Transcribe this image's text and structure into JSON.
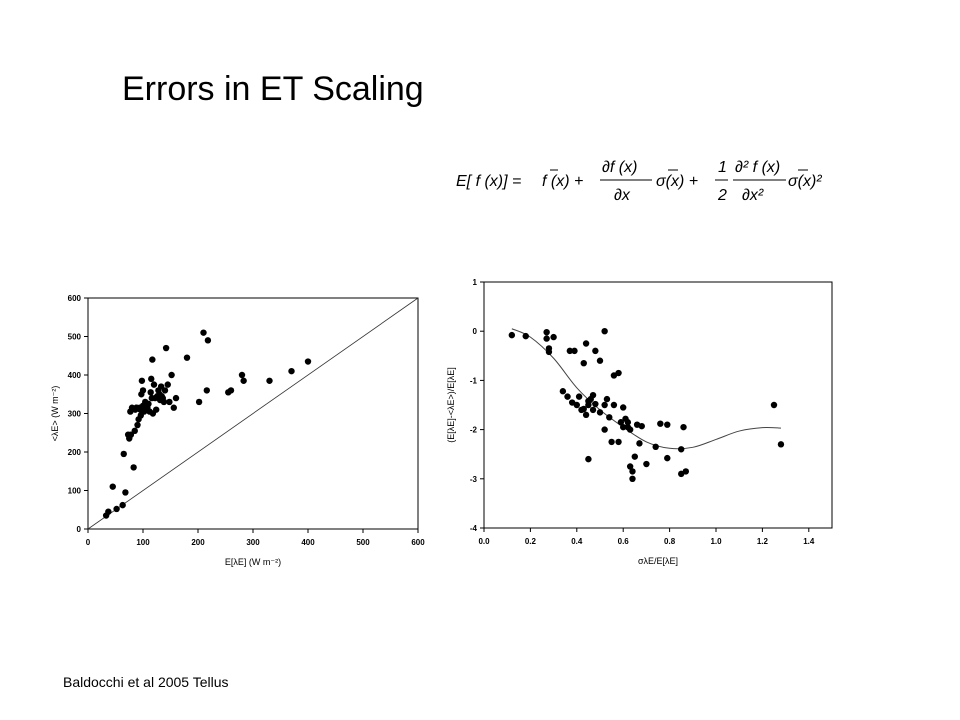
{
  "slide": {
    "title": "Errors in ET Scaling",
    "footer": "Baldocchi et al 2005 Tellus",
    "equation": {
      "lhs": "E[ f (x)] =",
      "term1": "f (x) +",
      "num1": "∂f (x)",
      "den1": "∂x",
      "sigma1": "σ(x) +",
      "frac_num": "1",
      "frac_den": "2",
      "num2": "∂² f (x)",
      "den2": "∂x²",
      "sigma2": "σ(x)²"
    }
  },
  "chart_data": [
    {
      "type": "scatter",
      "title": "",
      "xlabel": "E[λE] (W m⁻²)",
      "ylabel": "<λE> (W m⁻²)",
      "xlim": [
        0,
        600
      ],
      "ylim": [
        0,
        600
      ],
      "xticks": [
        "0",
        "100",
        "200",
        "300",
        "400",
        "500",
        "600"
      ],
      "yticks": [
        "0",
        "100",
        "200",
        "300",
        "400",
        "500",
        "600"
      ],
      "grid": false,
      "reference_line": "1:1",
      "points": [
        [
          33,
          35
        ],
        [
          37,
          45
        ],
        [
          45,
          110
        ],
        [
          52,
          52
        ],
        [
          63,
          62
        ],
        [
          68,
          95
        ],
        [
          65,
          195
        ],
        [
          73,
          245
        ],
        [
          75,
          235
        ],
        [
          77,
          305
        ],
        [
          78,
          245
        ],
        [
          80,
          315
        ],
        [
          83,
          160
        ],
        [
          85,
          255
        ],
        [
          88,
          315
        ],
        [
          90,
          270
        ],
        [
          92,
          285
        ],
        [
          95,
          310
        ],
        [
          96,
          295
        ],
        [
          97,
          350
        ],
        [
          98,
          385
        ],
        [
          100,
          360
        ],
        [
          100,
          320
        ],
        [
          102,
          305
        ],
        [
          104,
          330
        ],
        [
          106,
          310
        ],
        [
          108,
          315
        ],
        [
          110,
          325
        ],
        [
          112,
          305
        ],
        [
          114,
          355
        ],
        [
          115,
          390
        ],
        [
          116,
          340
        ],
        [
          117,
          440
        ],
        [
          118,
          300
        ],
        [
          120,
          375
        ],
        [
          122,
          340
        ],
        [
          124,
          310
        ],
        [
          126,
          345
        ],
        [
          128,
          360
        ],
        [
          130,
          350
        ],
        [
          131,
          335
        ],
        [
          133,
          370
        ],
        [
          134,
          345
        ],
        [
          136,
          340
        ],
        [
          138,
          330
        ],
        [
          140,
          360
        ],
        [
          142,
          470
        ],
        [
          145,
          375
        ],
        [
          148,
          330
        ],
        [
          152,
          400
        ],
        [
          156,
          315
        ],
        [
          160,
          340
        ],
        [
          180,
          445
        ],
        [
          202,
          330
        ],
        [
          210,
          510
        ],
        [
          216,
          360
        ],
        [
          218,
          490
        ],
        [
          255,
          355
        ],
        [
          260,
          360
        ],
        [
          280,
          400
        ],
        [
          283,
          385
        ],
        [
          330,
          385
        ],
        [
          370,
          410
        ],
        [
          400,
          435
        ],
        [
          102,
          310
        ],
        [
          94,
          315
        ],
        [
          88,
          315
        ],
        [
          86,
          310
        ]
      ]
    },
    {
      "type": "scatter",
      "title": "",
      "xlabel": "σλE/E[λE]",
      "ylabel": "(E[λE]-<λE>)/E[λE]",
      "xlim": [
        0.0,
        1.5
      ],
      "ylim": [
        -4,
        1
      ],
      "xticks": [
        "0.0",
        "0.2",
        "0.4",
        "0.6",
        "0.8",
        "1.0",
        "1.2",
        "1.4"
      ],
      "yticks": [
        "1",
        "0",
        "-1",
        "-2",
        "-3",
        "-4"
      ],
      "grid": false,
      "fit_curve": [
        [
          0.12,
          0.05
        ],
        [
          0.2,
          -0.12
        ],
        [
          0.3,
          -0.55
        ],
        [
          0.4,
          -1.15
        ],
        [
          0.5,
          -1.6
        ],
        [
          0.6,
          -1.95
        ],
        [
          0.7,
          -2.25
        ],
        [
          0.8,
          -2.38
        ],
        [
          0.9,
          -2.36
        ],
        [
          1.0,
          -2.2
        ],
        [
          1.1,
          -2.03
        ],
        [
          1.2,
          -1.96
        ],
        [
          1.28,
          -1.97
        ]
      ],
      "points": [
        [
          0.12,
          -0.08
        ],
        [
          0.18,
          -0.1
        ],
        [
          0.27,
          -0.02
        ],
        [
          0.27,
          -0.15
        ],
        [
          0.28,
          -0.35
        ],
        [
          0.28,
          -0.42
        ],
        [
          0.3,
          -0.12
        ],
        [
          0.34,
          -1.22
        ],
        [
          0.36,
          -1.33
        ],
        [
          0.37,
          -0.4
        ],
        [
          0.38,
          -1.45
        ],
        [
          0.39,
          -0.4
        ],
        [
          0.4,
          -1.5
        ],
        [
          0.41,
          -1.33
        ],
        [
          0.42,
          -1.6
        ],
        [
          0.43,
          -1.58
        ],
        [
          0.43,
          -0.65
        ],
        [
          0.44,
          -0.25
        ],
        [
          0.44,
          -1.7
        ],
        [
          0.45,
          -1.42
        ],
        [
          0.45,
          -1.5
        ],
        [
          0.45,
          -2.6
        ],
        [
          0.46,
          -1.38
        ],
        [
          0.47,
          -1.3
        ],
        [
          0.47,
          -1.6
        ],
        [
          0.48,
          -1.48
        ],
        [
          0.48,
          -0.4
        ],
        [
          0.5,
          -1.65
        ],
        [
          0.5,
          -0.6
        ],
        [
          0.52,
          -2.0
        ],
        [
          0.52,
          -1.5
        ],
        [
          0.52,
          0.0
        ],
        [
          0.53,
          -1.38
        ],
        [
          0.54,
          -1.75
        ],
        [
          0.55,
          -2.25
        ],
        [
          0.56,
          -1.5
        ],
        [
          0.56,
          -0.9
        ],
        [
          0.58,
          -2.25
        ],
        [
          0.58,
          -0.85
        ],
        [
          0.59,
          -1.85
        ],
        [
          0.6,
          -1.95
        ],
        [
          0.6,
          -1.55
        ],
        [
          0.61,
          -1.78
        ],
        [
          0.62,
          -1.85
        ],
        [
          0.62,
          -1.95
        ],
        [
          0.63,
          -2.0
        ],
        [
          0.63,
          -2.75
        ],
        [
          0.64,
          -2.85
        ],
        [
          0.64,
          -3.0
        ],
        [
          0.65,
          -2.55
        ],
        [
          0.66,
          -1.9
        ],
        [
          0.67,
          -2.28
        ],
        [
          0.68,
          -1.93
        ],
        [
          0.7,
          -2.7
        ],
        [
          0.74,
          -2.35
        ],
        [
          0.76,
          -1.88
        ],
        [
          0.79,
          -2.58
        ],
        [
          0.79,
          -1.9
        ],
        [
          0.85,
          -2.4
        ],
        [
          0.85,
          -2.9
        ],
        [
          0.86,
          -1.95
        ],
        [
          0.87,
          -2.85
        ],
        [
          1.25,
          -1.5
        ],
        [
          1.28,
          -2.3
        ]
      ]
    }
  ]
}
